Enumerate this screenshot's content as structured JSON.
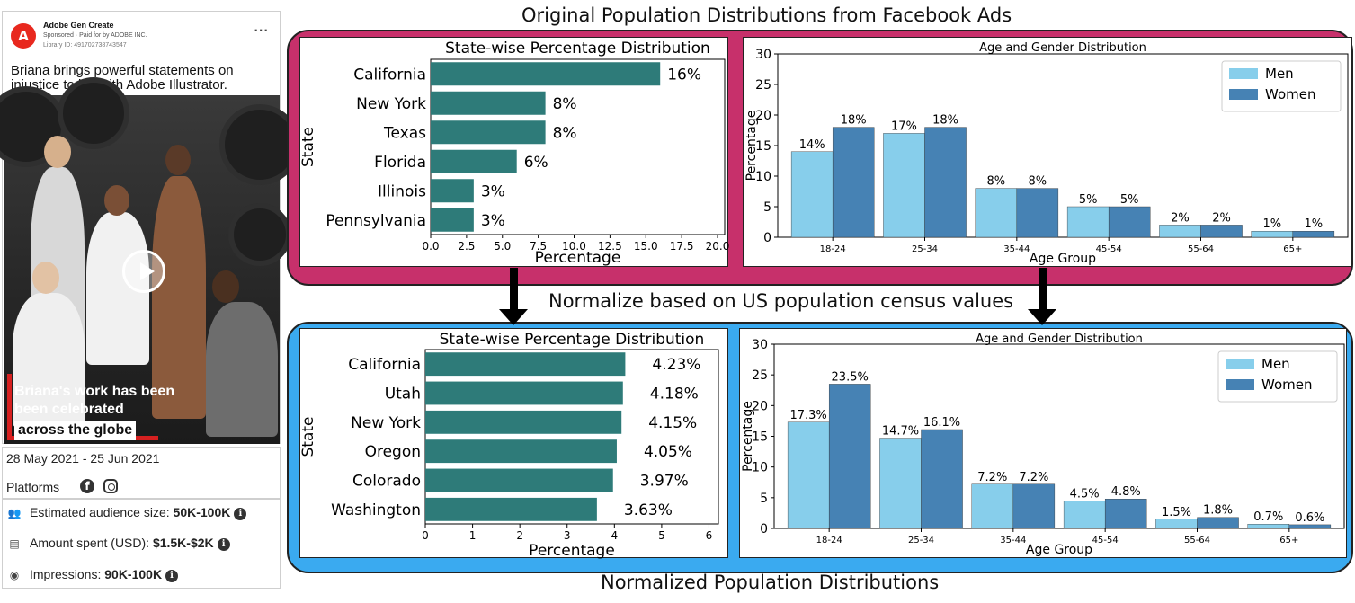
{
  "ad": {
    "advertiser": "Adobe Gen Create",
    "sponsored": "Sponsored · Paid for by ADOBE INC.",
    "library_id": "Library ID: 491702738743547",
    "logo_icon": "adobe-logo-icon",
    "caption": "Briana brings powerful statements on injustice to life with Adobe Illustrator.",
    "overlay_line1": "Briana's work has been",
    "overlay_line2": "been celebrated",
    "overlay_line3": "across the globe",
    "dates": "28 May 2021 - 25 Jun 2021",
    "platforms_label": "Platforms",
    "platform_icons": [
      "facebook-icon",
      "instagram-icon"
    ],
    "stats": [
      {
        "icon": "audience-icon",
        "label": "Estimated audience size: ",
        "value": "50K-100K"
      },
      {
        "icon": "money-icon",
        "label": "Amount spent (USD): ",
        "value": "$1.5K-$2K"
      },
      {
        "icon": "eye-icon",
        "label": "Impressions: ",
        "value": "90K-100K"
      }
    ]
  },
  "titles": {
    "top": "Original Population Distributions from Facebook Ads",
    "middle": "Normalize based on US population census values",
    "bottom": "Normalized Population Distributions"
  },
  "colors": {
    "original_panel": "#c7306b",
    "normalized_panel": "#3aaaf0",
    "state_bar": "#2e7b79",
    "men": "#87ceeb",
    "women": "#4682b4"
  },
  "chart_data": [
    {
      "type": "bar",
      "orientation": "horizontal",
      "title": "State-wise Percentage Distribution",
      "xlabel": "Percentage",
      "ylabel": "State",
      "categories": [
        "California",
        "New York",
        "Texas",
        "Florida",
        "Illinois",
        "Pennsylvania"
      ],
      "values": [
        16,
        8,
        8,
        6,
        3,
        3
      ],
      "labels": [
        "16%",
        "8%",
        "8%",
        "6%",
        "3%",
        "3%"
      ],
      "xlim": [
        0,
        20.5
      ],
      "xticks": [
        "0.0",
        "2.5",
        "5.0",
        "7.5",
        "10.0",
        "12.5",
        "15.0",
        "17.5",
        "20.0"
      ],
      "xtick_values": [
        0,
        2.5,
        5,
        7.5,
        10,
        12.5,
        15,
        17.5,
        20
      ]
    },
    {
      "type": "bar",
      "title": "Age and Gender Distribution",
      "xlabel": "Age Group",
      "ylabel": "Percentage",
      "categories": [
        "18-24",
        "25-34",
        "35-44",
        "45-54",
        "55-64",
        "65+"
      ],
      "series": [
        {
          "name": "Men",
          "values": [
            14,
            17,
            8,
            5,
            2,
            1
          ],
          "labels": [
            "14%",
            "17%",
            "8%",
            "5%",
            "2%",
            "1%"
          ]
        },
        {
          "name": "Women",
          "values": [
            18,
            18,
            8,
            5,
            2,
            1
          ],
          "labels": [
            "18%",
            "18%",
            "8%",
            "5%",
            "2%",
            "1%"
          ]
        }
      ],
      "ylim": [
        0,
        30
      ],
      "yticks": [
        "0",
        "5",
        "10",
        "15",
        "20",
        "25",
        "30"
      ],
      "legend": "top-right"
    },
    {
      "type": "bar",
      "orientation": "horizontal",
      "title": "State-wise Percentage Distribution",
      "xlabel": "Percentage",
      "ylabel": "State",
      "categories": [
        "California",
        "Utah",
        "New York",
        "Oregon",
        "Colorado",
        "Washington"
      ],
      "values": [
        4.23,
        4.18,
        4.15,
        4.05,
        3.97,
        3.63
      ],
      "labels": [
        "4.23%",
        "4.18%",
        "4.15%",
        "4.05%",
        "3.97%",
        "3.63%"
      ],
      "xlim": [
        0,
        6.2
      ],
      "xticks": [
        "0",
        "1",
        "2",
        "3",
        "4",
        "5",
        "6"
      ],
      "xtick_values": [
        0,
        1,
        2,
        3,
        4,
        5,
        6
      ]
    },
    {
      "type": "bar",
      "title": "Age and Gender Distribution",
      "xlabel": "Age Group",
      "ylabel": "Percentage",
      "categories": [
        "18-24",
        "25-34",
        "35-44",
        "45-54",
        "55-64",
        "65+"
      ],
      "series": [
        {
          "name": "Men",
          "values": [
            17.3,
            14.7,
            7.2,
            4.5,
            1.5,
            0.7
          ],
          "labels": [
            "17.3%",
            "14.7%",
            "7.2%",
            "4.5%",
            "1.5%",
            "0.7%"
          ]
        },
        {
          "name": "Women",
          "values": [
            23.5,
            16.1,
            7.2,
            4.8,
            1.8,
            0.6
          ],
          "labels": [
            "23.5%",
            "16.1%",
            "7.2%",
            "4.8%",
            "1.8%",
            "0.6%"
          ]
        }
      ],
      "ylim": [
        0,
        30
      ],
      "yticks": [
        "0",
        "5",
        "10",
        "15",
        "20",
        "25",
        "30"
      ],
      "legend": "top-right"
    }
  ]
}
